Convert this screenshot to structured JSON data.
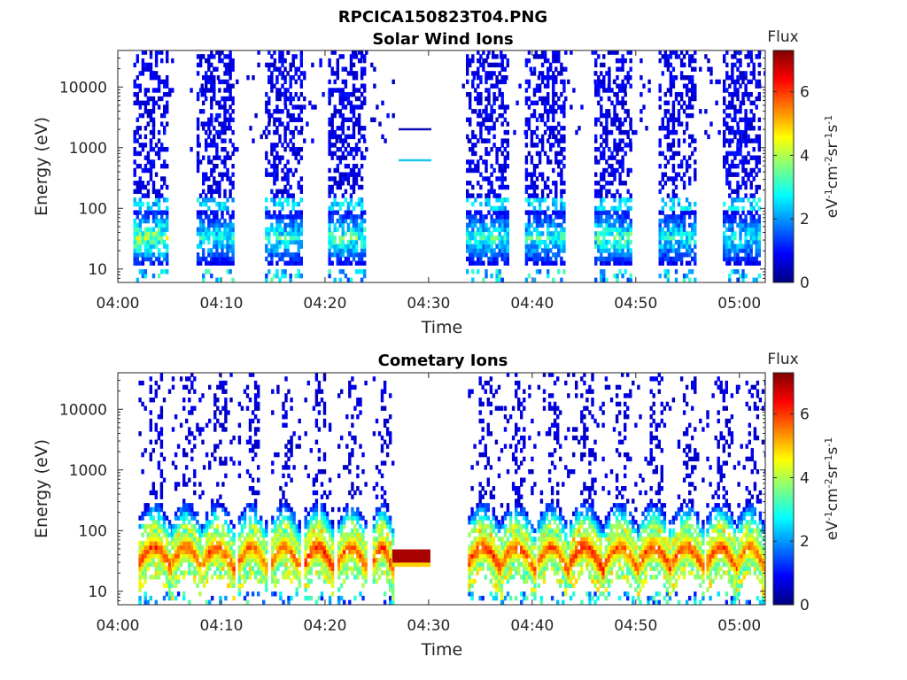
{
  "figure": {
    "title": "RPCICA150823T04.PNG"
  },
  "chart_data": [
    {
      "type": "heatmap",
      "title": "Solar Wind Ions",
      "xlabel": "Time",
      "ylabel": "Energy (eV)",
      "x_ticks": [
        "04:00",
        "04:10",
        "04:20",
        "04:30",
        "04:40",
        "04:50",
        "05:00"
      ],
      "y_ticks": [
        "10",
        "100",
        "1000",
        "10000"
      ],
      "y_scale": "log",
      "ylim": [
        6,
        40000
      ],
      "xlim_minutes": [
        0,
        62.5
      ],
      "colorbar": {
        "title": "Flux",
        "label": "eV-1cm-2sr-1s-1",
        "ticks": [
          "0",
          "2",
          "4",
          "6"
        ],
        "range": [
          0,
          7.3
        ],
        "colormap": "jet"
      },
      "bursts": [
        {
          "t_start": 1.5,
          "t_end": 4.8,
          "peak_energy_eV": 30,
          "peak_flux": 4.8
        },
        {
          "t_start": 7.6,
          "t_end": 11.0,
          "peak_energy_eV": 30,
          "peak_flux": 3.6
        },
        {
          "t_start": 14.2,
          "t_end": 17.6,
          "peak_energy_eV": 30,
          "peak_flux": 3.8
        },
        {
          "t_start": 20.3,
          "t_end": 23.8,
          "peak_energy_eV": 30,
          "peak_flux": 4.2
        },
        {
          "t_start": 33.6,
          "t_end": 37.6,
          "peak_energy_eV": 30,
          "peak_flux": 3.8
        },
        {
          "t_start": 39.3,
          "t_end": 43.0,
          "peak_energy_eV": 30,
          "peak_flux": 3.8
        },
        {
          "t_start": 46.0,
          "t_end": 49.4,
          "peak_energy_eV": 30,
          "peak_flux": 4.2
        },
        {
          "t_start": 52.2,
          "t_end": 55.8,
          "peak_energy_eV": 30,
          "peak_flux": 3.6
        },
        {
          "t_start": 58.4,
          "t_end": 62.0,
          "peak_energy_eV": 30,
          "peak_flux": 3.4
        }
      ],
      "data_gap_minutes": [
        26.5,
        33.2
      ],
      "legend_lines": [
        "#1010b8",
        "#18c8f0"
      ]
    },
    {
      "type": "heatmap",
      "title": "Cometary Ions",
      "xlabel": "Time",
      "ylabel": "Energy (eV)",
      "x_ticks": [
        "04:00",
        "04:10",
        "04:20",
        "04:30",
        "04:40",
        "04:50",
        "05:00"
      ],
      "y_ticks": [
        "10",
        "100",
        "1000",
        "10000"
      ],
      "y_scale": "log",
      "ylim": [
        6,
        40000
      ],
      "xlim_minutes": [
        0,
        62.5
      ],
      "colorbar": {
        "title": "Flux",
        "label": "eV-1cm-2sr-1s-1",
        "ticks": [
          "0",
          "2",
          "4",
          "6"
        ],
        "range": [
          0,
          7.3
        ],
        "colormap": "jet"
      },
      "bursts": [
        {
          "t_start": 2.0,
          "t_end": 5.2,
          "peak_energy_eV": 35,
          "peak_flux": 6.5
        },
        {
          "t_start": 5.2,
          "t_end": 8.2,
          "peak_energy_eV": 35,
          "peak_flux": 6.3
        },
        {
          "t_start": 8.2,
          "t_end": 11.2,
          "peak_energy_eV": 35,
          "peak_flux": 6.4
        },
        {
          "t_start": 11.6,
          "t_end": 14.4,
          "peak_energy_eV": 35,
          "peak_flux": 6.2
        },
        {
          "t_start": 14.8,
          "t_end": 17.6,
          "peak_energy_eV": 35,
          "peak_flux": 6.2
        },
        {
          "t_start": 18.0,
          "t_end": 20.8,
          "peak_energy_eV": 35,
          "peak_flux": 6.7
        },
        {
          "t_start": 21.2,
          "t_end": 24.0,
          "peak_energy_eV": 35,
          "peak_flux": 6.3
        },
        {
          "t_start": 24.6,
          "t_end": 26.5,
          "peak_energy_eV": 35,
          "peak_flux": 6.5
        },
        {
          "t_start": 33.8,
          "t_end": 37.0,
          "peak_energy_eV": 35,
          "peak_flux": 6.6
        },
        {
          "t_start": 37.0,
          "t_end": 40.2,
          "peak_energy_eV": 35,
          "peak_flux": 6.3
        },
        {
          "t_start": 40.5,
          "t_end": 43.4,
          "peak_energy_eV": 35,
          "peak_flux": 6.3
        },
        {
          "t_start": 43.6,
          "t_end": 46.8,
          "peak_energy_eV": 35,
          "peak_flux": 6.8
        },
        {
          "t_start": 47.0,
          "t_end": 50.2,
          "peak_energy_eV": 35,
          "peak_flux": 6.3
        },
        {
          "t_start": 50.3,
          "t_end": 53.4,
          "peak_energy_eV": 35,
          "peak_flux": 6.6
        },
        {
          "t_start": 53.5,
          "t_end": 56.6,
          "peak_energy_eV": 35,
          "peak_flux": 6.4
        },
        {
          "t_start": 56.8,
          "t_end": 59.8,
          "peak_energy_eV": 35,
          "peak_flux": 6.4
        },
        {
          "t_start": 59.8,
          "t_end": 62.5,
          "peak_energy_eV": 35,
          "peak_flux": 6.1
        }
      ],
      "steady_band": {
        "t_start": 26.5,
        "t_end": 30.0,
        "peak_energy_eV": 35,
        "peak_flux": 7.0
      },
      "data_gap_minutes": [
        30.0,
        33.2
      ]
    }
  ]
}
